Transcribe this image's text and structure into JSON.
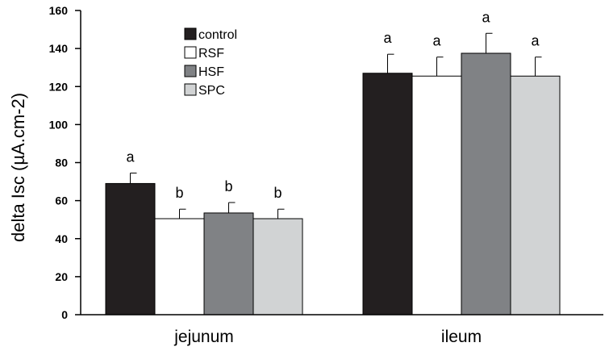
{
  "chart_data": {
    "type": "bar",
    "title": "",
    "xlabel": "",
    "ylabel": "delta Isc (µA.cm-2)",
    "ylim": [
      0,
      160
    ],
    "yticks": [
      0,
      20,
      40,
      60,
      80,
      100,
      120,
      140,
      160
    ],
    "categories": [
      "jejunum",
      "ileum"
    ],
    "legend_position": "top-left",
    "series": [
      {
        "name": "control",
        "color": "#231f20",
        "values": [
          69,
          127
        ],
        "errors": [
          5.5,
          10
        ],
        "labels": [
          "a",
          "a"
        ]
      },
      {
        "name": "RSF",
        "color": "#ffffff",
        "values": [
          50.5,
          125.5
        ],
        "errors": [
          5,
          10
        ],
        "labels": [
          "b",
          "a"
        ]
      },
      {
        "name": "HSF",
        "color": "#808285",
        "values": [
          53.5,
          137.5
        ],
        "errors": [
          5.5,
          10.5
        ],
        "labels": [
          "b",
          "a"
        ]
      },
      {
        "name": "SPC",
        "color": "#d1d3d4",
        "values": [
          50.5,
          125.5
        ],
        "errors": [
          5,
          10
        ],
        "labels": [
          "b",
          "a"
        ]
      }
    ]
  }
}
